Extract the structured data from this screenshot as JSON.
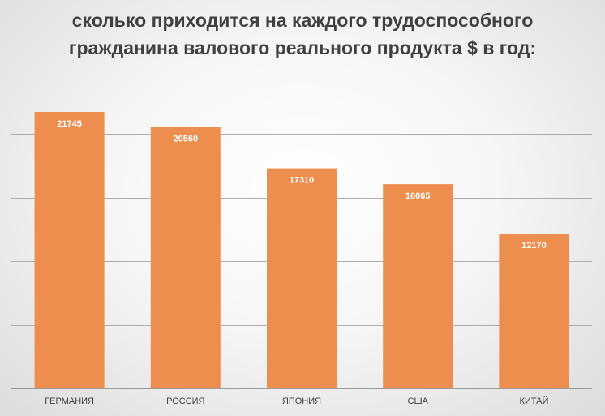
{
  "chart_data": {
    "type": "bar",
    "title_lines": [
      "сколько приходится на каждого трудоспособного",
      "гражданина валового реального продукта $ в год:"
    ],
    "categories": [
      "ГЕРМАНИЯ",
      "РОССИЯ",
      "ЯПОНИЯ",
      "США",
      "КИТАЙ"
    ],
    "values": [
      21745,
      20560,
      17310,
      16065,
      12170
    ],
    "data_labels": [
      "21745",
      "20560",
      "17310",
      "16065",
      "12170"
    ],
    "ylim": [
      0,
      25000
    ],
    "gridlines": [
      5000,
      10000,
      15000,
      20000,
      25000
    ],
    "grid": true,
    "legend": "none",
    "bar_color": "#ED8D4E",
    "grid_color": "#ADADAD"
  }
}
